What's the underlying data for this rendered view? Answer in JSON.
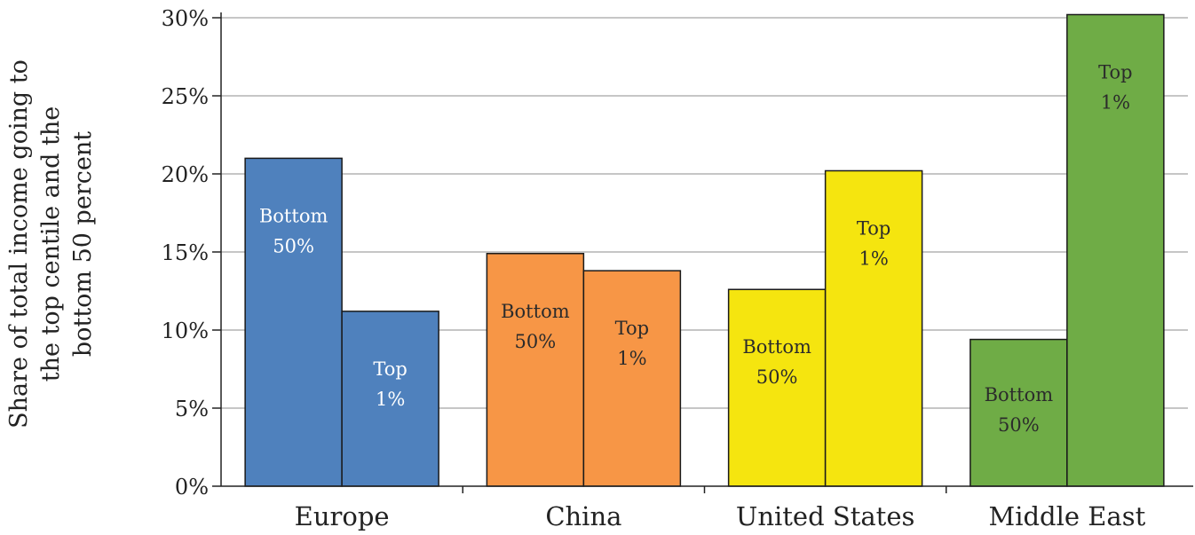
{
  "chart_data": {
    "type": "bar",
    "title": "",
    "xlabel": "",
    "ylabel": [
      "Share of total income going to",
      "the top centile and the",
      "bottom 50 percent"
    ],
    "ylim": [
      0,
      30
    ],
    "yticks": [
      "0%",
      "5%",
      "10%",
      "15%",
      "20%",
      "25%",
      "30%"
    ],
    "grid": true,
    "categories": [
      "Europe",
      "China",
      "United States",
      "Middle East"
    ],
    "series": [
      {
        "name_lines": [
          "Bottom",
          "50%"
        ],
        "values": [
          21.0,
          14.9,
          12.6,
          9.4
        ]
      },
      {
        "name_lines": [
          "Top",
          "1%"
        ],
        "values": [
          11.2,
          13.8,
          20.2,
          30.2
        ]
      }
    ],
    "colors": [
      "#4f81bd",
      "#f79646",
      "#f5e50f",
      "#6fac46"
    ],
    "label_colors": [
      "#ffffff",
      "#2b2b2b",
      "#2b2b2b",
      "#2b2b2b"
    ]
  }
}
